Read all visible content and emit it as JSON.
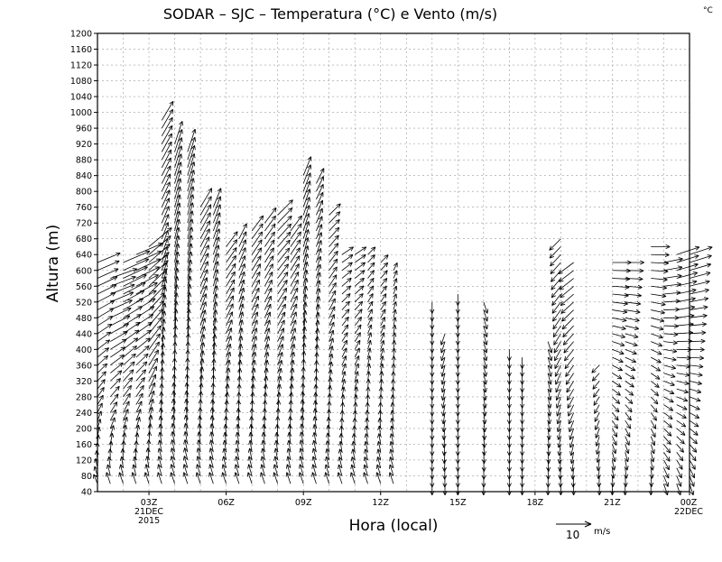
{
  "chart_data": {
    "type": "wind-barbs",
    "title": "SODAR – SJC – Temperatura (°C) e Vento (m/s)",
    "corner_unit": "°C",
    "xlabel": "Hora (local)",
    "ylabel": "Altura (m)",
    "ylim": [
      40,
      1200
    ],
    "y_ticks": [
      40,
      80,
      120,
      160,
      200,
      240,
      280,
      320,
      360,
      400,
      440,
      480,
      520,
      560,
      600,
      640,
      680,
      720,
      760,
      800,
      840,
      880,
      920,
      960,
      1000,
      1040,
      1080,
      1120,
      1160,
      1200
    ],
    "xlim_hours": [
      1,
      24
    ],
    "x_ticks": [
      {
        "hour": 3,
        "label": "03Z",
        "date_line1": "21DEC",
        "date_line2": "2015"
      },
      {
        "hour": 6,
        "label": "06Z"
      },
      {
        "hour": 9,
        "label": "09Z"
      },
      {
        "hour": 12,
        "label": "12Z"
      },
      {
        "hour": 15,
        "label": "15Z"
      },
      {
        "hour": 18,
        "label": "18Z"
      },
      {
        "hour": 21,
        "label": "21Z"
      },
      {
        "hour": 24,
        "label": "00Z",
        "date_line1": "22DEC"
      }
    ],
    "grid": true,
    "reference_vector": {
      "value": "10",
      "unit": "m/s"
    },
    "profiles": [
      {
        "hour": 1.0,
        "top": 620,
        "u_low": -1,
        "v_low": 2.5,
        "u_high": 6,
        "v_high": 2.5
      },
      {
        "hour": 1.5,
        "top": 580,
        "u_low": -1,
        "v_low": 3,
        "u_high": 7,
        "v_high": 2.5
      },
      {
        "hour": 2.0,
        "top": 620,
        "u_low": -1,
        "v_low": 3,
        "u_high": 7,
        "v_high": 3
      },
      {
        "hour": 2.5,
        "top": 640,
        "u_low": -1,
        "v_low": 3,
        "u_high": 7,
        "v_high": 3
      },
      {
        "hour": 3.0,
        "top": 660,
        "u_low": -1,
        "v_low": 3,
        "u_high": 6,
        "v_high": 5
      },
      {
        "hour": 3.5,
        "top": 980,
        "u_low": -1,
        "v_low": 3,
        "u_high": 3,
        "v_high": 5
      },
      {
        "hour": 4.0,
        "top": 920,
        "u_low": -1,
        "v_low": 3,
        "u_high": 2,
        "v_high": 6
      },
      {
        "hour": 4.5,
        "top": 900,
        "u_low": -1,
        "v_low": 3,
        "u_high": 2,
        "v_high": 6
      },
      {
        "hour": 5.0,
        "top": 760,
        "u_low": -1,
        "v_low": 3,
        "u_high": 3,
        "v_high": 5
      },
      {
        "hour": 5.5,
        "top": 760,
        "u_low": -1,
        "v_low": 3,
        "u_high": 2,
        "v_high": 5
      },
      {
        "hour": 6.0,
        "top": 660,
        "u_low": -1,
        "v_low": 3,
        "u_high": 3,
        "v_high": 4
      },
      {
        "hour": 6.5,
        "top": 680,
        "u_low": -1,
        "v_low": 3,
        "u_high": 2,
        "v_high": 4
      },
      {
        "hour": 7.0,
        "top": 700,
        "u_low": -1,
        "v_low": 3,
        "u_high": 3,
        "v_high": 4
      },
      {
        "hour": 7.5,
        "top": 720,
        "u_low": -1,
        "v_low": 3,
        "u_high": 3,
        "v_high": 4
      },
      {
        "hour": 8.0,
        "top": 740,
        "u_low": -1,
        "v_low": 3,
        "u_high": 4,
        "v_high": 4
      },
      {
        "hour": 8.5,
        "top": 700,
        "u_low": -1,
        "v_low": 3,
        "u_high": 3,
        "v_high": 4
      },
      {
        "hour": 9.0,
        "top": 840,
        "u_low": -1,
        "v_low": 3,
        "u_high": 2,
        "v_high": 5
      },
      {
        "hour": 9.5,
        "top": 820,
        "u_low": -1,
        "v_low": 3,
        "u_high": 2,
        "v_high": 4
      },
      {
        "hour": 10.0,
        "top": 740,
        "u_low": -1,
        "v_low": 3,
        "u_high": 3,
        "v_high": 3
      },
      {
        "hour": 10.5,
        "top": 640,
        "u_low": -1,
        "v_low": 3,
        "u_high": 3,
        "v_high": 2
      },
      {
        "hour": 11.0,
        "top": 640,
        "u_low": -1,
        "v_low": 3,
        "u_high": 3,
        "v_high": 2
      },
      {
        "hour": 11.5,
        "top": 640,
        "u_low": -1,
        "v_low": 3,
        "u_high": 2,
        "v_high": 2
      },
      {
        "hour": 12.0,
        "top": 620,
        "u_low": -1,
        "v_low": 3,
        "u_high": 2,
        "v_high": 2
      },
      {
        "hour": 12.5,
        "top": 600,
        "u_low": -1,
        "v_low": 3,
        "u_high": 1,
        "v_high": 2
      },
      {
        "hour": 14.0,
        "top": 520,
        "u_low": 0,
        "v_low": -3,
        "u_high": 0,
        "v_high": -3
      },
      {
        "hour": 14.5,
        "top": 440,
        "u_low": 0,
        "v_low": -3,
        "u_high": -1,
        "v_high": -3
      },
      {
        "hour": 15.0,
        "top": 540,
        "u_low": 0,
        "v_low": -3,
        "u_high": 0,
        "v_high": -3
      },
      {
        "hour": 16.0,
        "top": 520,
        "u_low": 0,
        "v_low": -3,
        "u_high": 1,
        "v_high": -3
      },
      {
        "hour": 17.0,
        "top": 400,
        "u_low": 0,
        "v_low": -3,
        "u_high": 0,
        "v_high": -3
      },
      {
        "hour": 17.5,
        "top": 380,
        "u_low": 0,
        "v_low": -3,
        "u_high": 0,
        "v_high": -3
      },
      {
        "hour": 18.5,
        "top": 420,
        "u_low": 0,
        "v_low": -3,
        "u_high": 1,
        "v_high": -3
      },
      {
        "hour": 19.0,
        "top": 680,
        "u_low": 0,
        "v_low": -3,
        "u_high": -3,
        "v_high": -3
      },
      {
        "hour": 19.5,
        "top": 620,
        "u_low": 0,
        "v_low": -3,
        "u_high": -4,
        "v_high": -3
      },
      {
        "hour": 20.5,
        "top": 360,
        "u_low": 0,
        "v_low": -3,
        "u_high": -2,
        "v_high": -2
      },
      {
        "hour": 21.0,
        "top": 620,
        "u_low": 0,
        "v_low": -3,
        "u_high": 5,
        "v_high": 0
      },
      {
        "hour": 21.5,
        "top": 620,
        "u_low": 0,
        "v_low": -3,
        "u_high": 5,
        "v_high": 0
      },
      {
        "hour": 22.5,
        "top": 660,
        "u_low": 0,
        "v_low": -3,
        "u_high": 5,
        "v_high": 0
      },
      {
        "hour": 23.0,
        "top": 620,
        "u_low": 1,
        "v_low": -3,
        "u_high": 5,
        "v_high": 1
      },
      {
        "hour": 23.5,
        "top": 640,
        "u_low": 1,
        "v_low": -3,
        "u_high": 6,
        "v_high": 2
      },
      {
        "hour": 24.0,
        "top": 640,
        "u_low": 1,
        "v_low": -3,
        "u_high": 6,
        "v_high": 2
      }
    ]
  }
}
